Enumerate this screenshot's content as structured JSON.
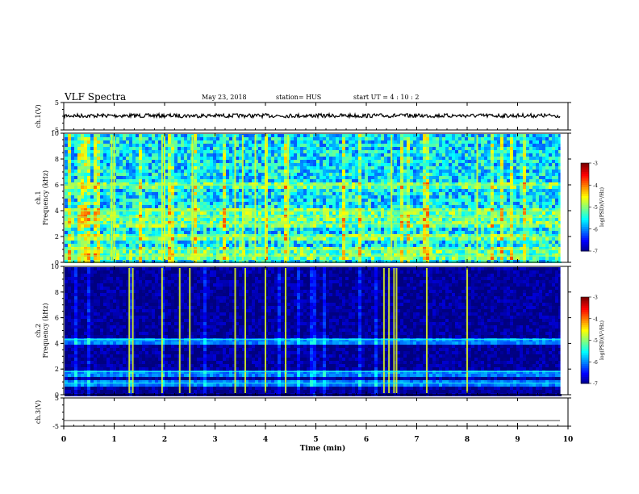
{
  "header": {
    "title": "VLF Spectra",
    "date": "May 23, 2018",
    "station": "station= HUS",
    "start": "start  UT =   4 : 10 : 2"
  },
  "chart_data": [
    {
      "type": "line",
      "panel": "ch1-waveform",
      "ylabel": "ch.1(V)",
      "ylim": [
        -5,
        5
      ],
      "yticks": [
        "5",
        "-5"
      ],
      "x_range_min": [
        0,
        9.85
      ],
      "series_level": 0.2,
      "series_color": "#000000"
    },
    {
      "type": "heatmap",
      "panel": "ch1-spectrogram",
      "ylabel": "ch.1\nFrequency (kHz)",
      "ylim": [
        0,
        10
      ],
      "yticks": [
        "0",
        "2",
        "4",
        "6",
        "8",
        "10"
      ],
      "colorbar": {
        "label": "log(PSD)(V²/Hz)",
        "ticks": [
          "-3",
          "-4",
          "-5",
          "-6",
          "-7"
        ],
        "range": [
          -7,
          -3
        ]
      },
      "background_level": -5.6,
      "bright_lines_min": [
        0.95,
        1.0,
        1.95,
        2.0,
        2.55,
        3.4,
        3.55,
        3.8,
        4.0,
        4.45,
        6.5,
        8.2
      ],
      "bands_khz": [
        0.5,
        1.0,
        2.0,
        3.0,
        3.5,
        4.0,
        6.0
      ]
    },
    {
      "type": "heatmap",
      "panel": "ch2-spectrogram",
      "ylabel": "ch.2\nFrequency (kHz)",
      "ylim": [
        0,
        10
      ],
      "yticks": [
        "0",
        "2",
        "4",
        "6",
        "8",
        "10"
      ],
      "colorbar": {
        "label": "log(PSD)(V²/Hz)",
        "ticks": [
          "-3",
          "-4",
          "-5",
          "-6",
          "-7"
        ],
        "range": [
          -7,
          -3
        ]
      },
      "background_level": -6.9,
      "bright_lines_min": [
        1.3,
        1.37,
        1.95,
        2.3,
        2.5,
        3.4,
        3.6,
        4.0,
        4.4,
        6.35,
        6.45,
        6.55,
        6.6,
        7.2,
        8.0
      ],
      "bands_khz": [
        0.9,
        1.8,
        4.3
      ]
    },
    {
      "type": "line",
      "panel": "ch3-waveform",
      "ylabel": "ch.3(V)",
      "ylim": [
        -5,
        5
      ],
      "yticks": [
        "5",
        "-5"
      ],
      "x_range_min": [
        0,
        9.85
      ],
      "series_level": -3.0,
      "series_color": "#000000"
    }
  ],
  "xaxis": {
    "label": "Time  (min)",
    "range": [
      0,
      10
    ],
    "ticks": [
      "0",
      "1",
      "2",
      "3",
      "4",
      "5",
      "6",
      "7",
      "8",
      "9",
      "10"
    ]
  }
}
